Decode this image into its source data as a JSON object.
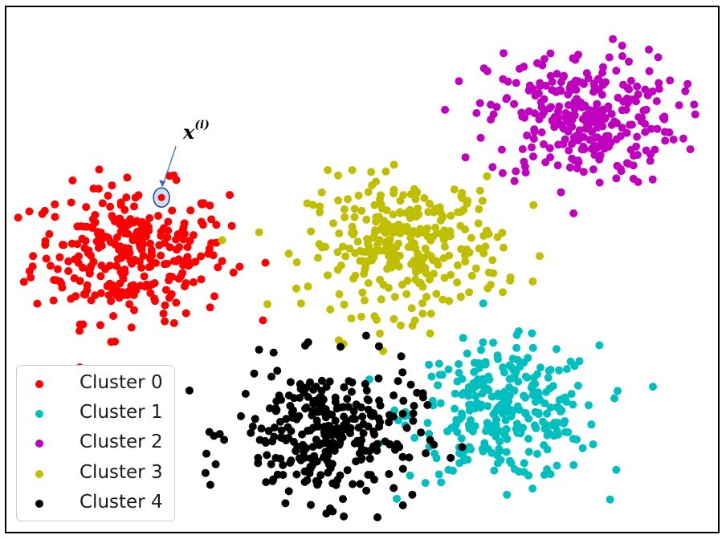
{
  "chart_data": {
    "type": "scatter",
    "title": "",
    "xlabel": "",
    "ylabel": "",
    "grid": false,
    "legend": {
      "placement": "lower-left"
    },
    "xlim": [
      0,
      9
    ],
    "ylim": [
      0,
      6.5
    ],
    "series": [
      {
        "name": "Cluster 0",
        "color": "#ff0000",
        "center": [
          1.55,
          3.45
        ],
        "spread": [
          0.62,
          0.42
        ],
        "count": 300
      },
      {
        "name": "Cluster 1",
        "color": "#00bfbf",
        "center": [
          6.3,
          1.45
        ],
        "spread": [
          0.6,
          0.42
        ],
        "count": 300
      },
      {
        "name": "Cluster 2",
        "color": "#bf00bf",
        "center": [
          7.3,
          5.15
        ],
        "spread": [
          0.6,
          0.42
        ],
        "count": 300
      },
      {
        "name": "Cluster 3",
        "color": "#bfbf00",
        "center": [
          5.05,
          3.55
        ],
        "spread": [
          0.62,
          0.42
        ],
        "count": 300
      },
      {
        "name": "Cluster 4",
        "color": "#000000",
        "center": [
          4.05,
          1.2
        ],
        "spread": [
          0.58,
          0.42
        ],
        "count": 300
      }
    ],
    "annotation": {
      "label_main": "x",
      "label_sup": "(i)",
      "point": [
        1.95,
        4.15
      ],
      "color": "#ff0000"
    }
  }
}
